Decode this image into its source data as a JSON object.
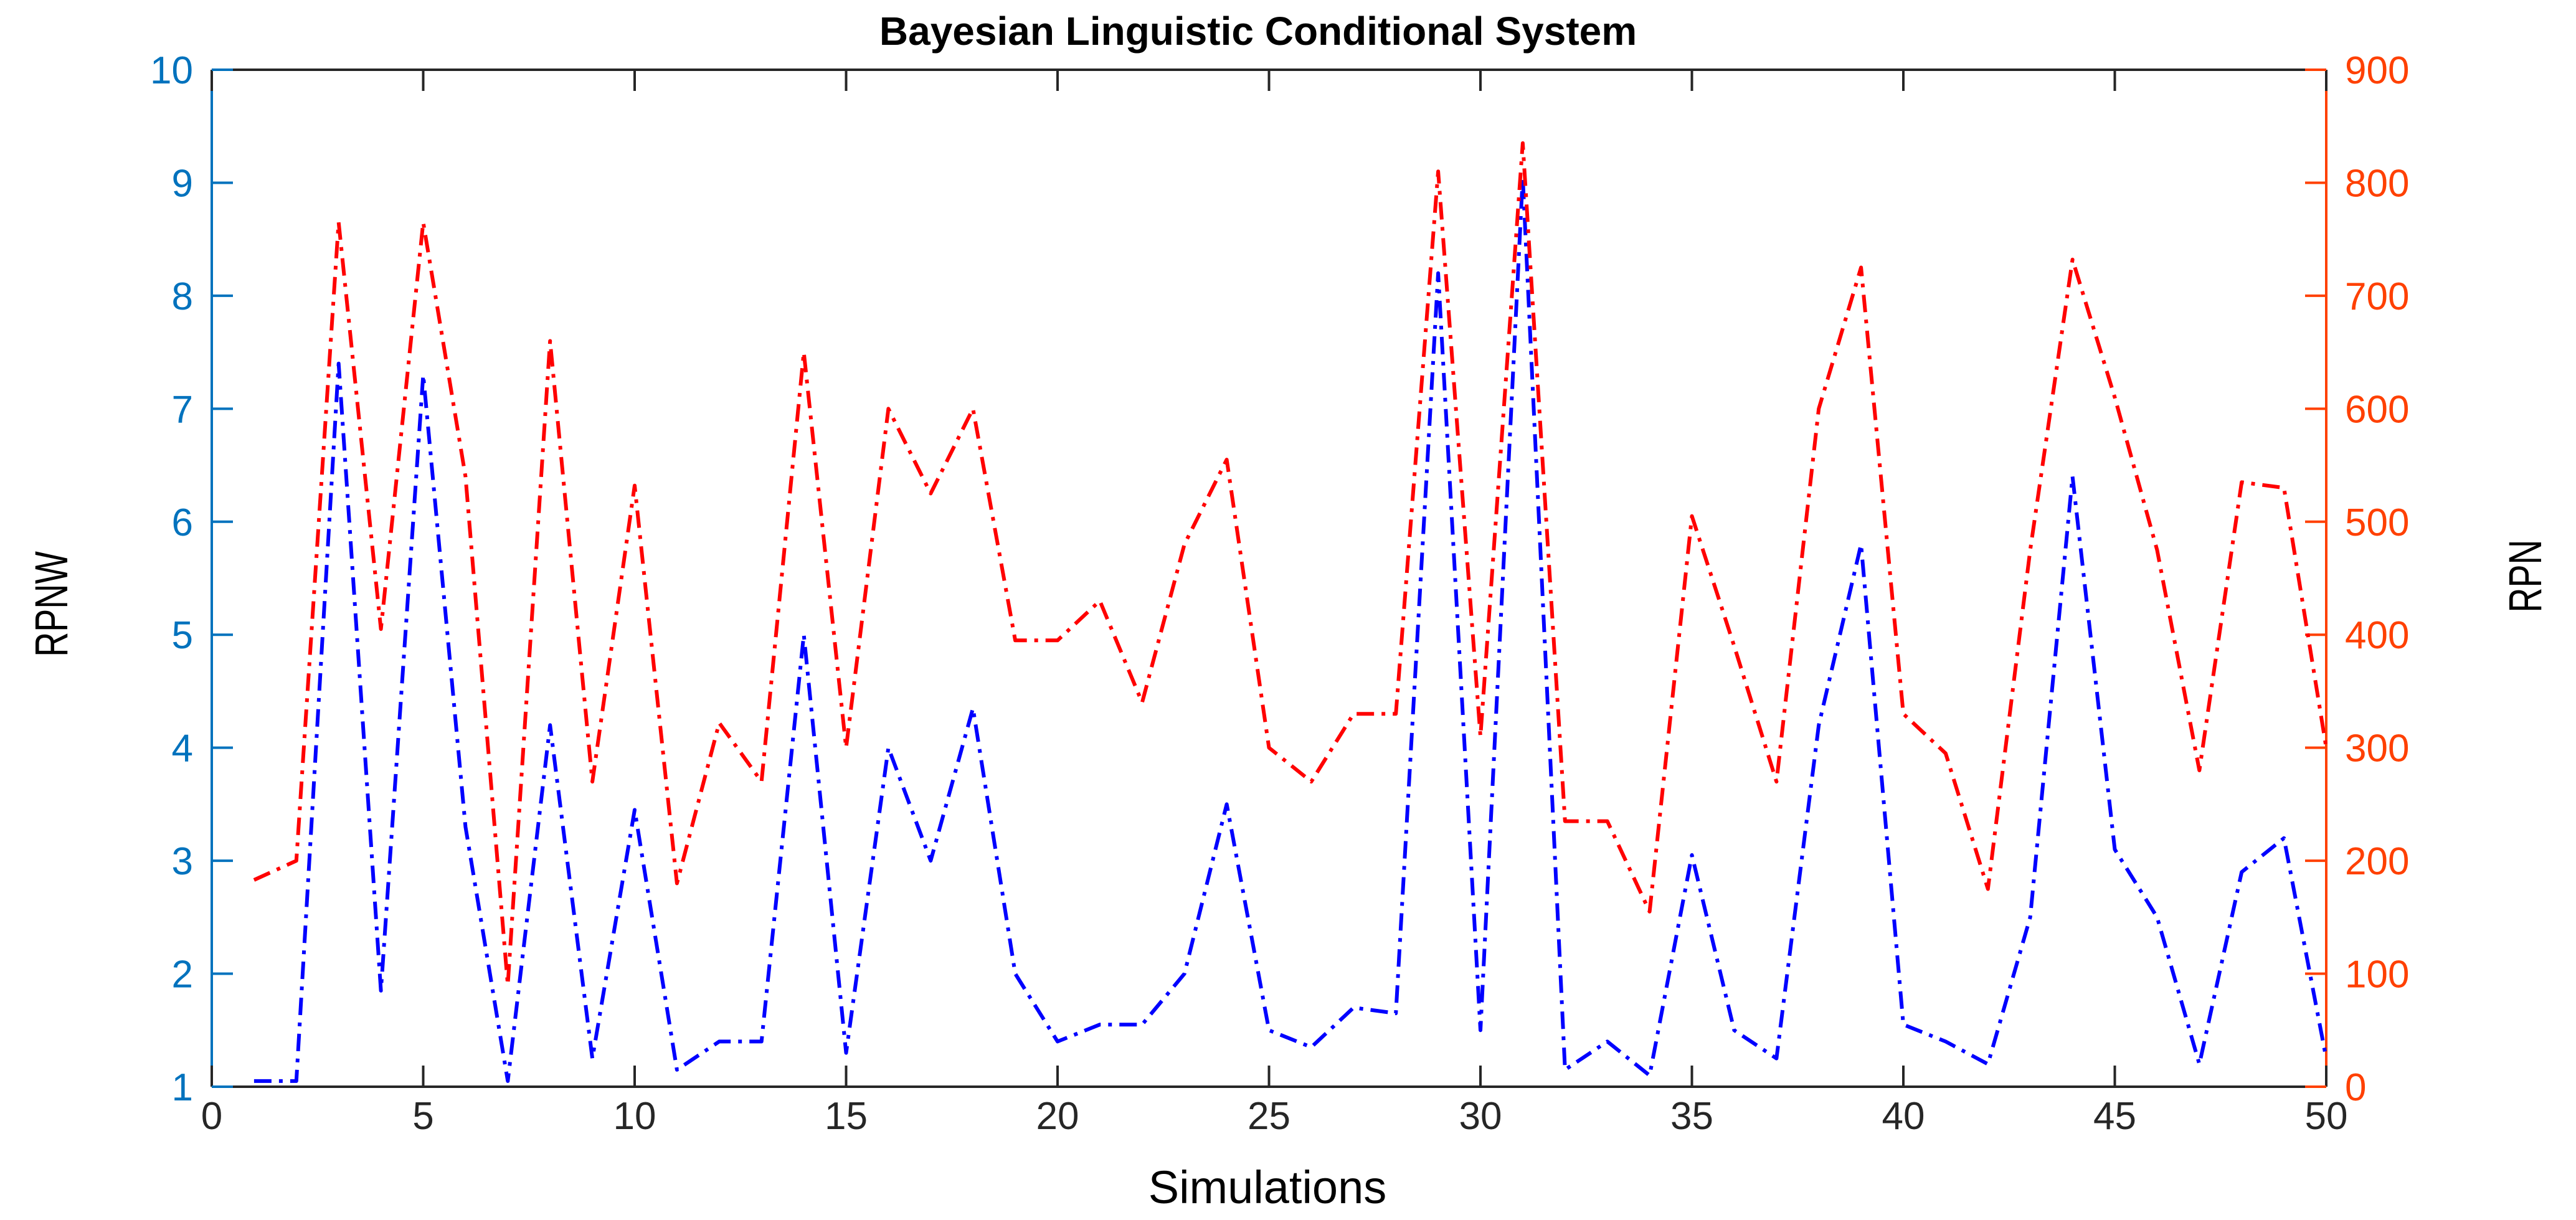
{
  "colors": {
    "left_axis": "#0072BD",
    "right_axis": "#FF4000",
    "rpnw_line": "#0000FF",
    "rpn_line": "#FF0000",
    "x_axis": "#262626"
  },
  "chart_data": {
    "type": "line",
    "title": "Bayesian Linguistic Conditional System",
    "xlabel": "Simulations",
    "ylabel_left": "RPNW",
    "ylabel_right": "RPN",
    "xlim": [
      0,
      50
    ],
    "ylim_left": [
      1,
      10
    ],
    "ylim_right": [
      0,
      900
    ],
    "xticks": [
      0,
      5,
      10,
      15,
      20,
      25,
      30,
      35,
      40,
      45,
      50
    ],
    "yticks_left": [
      1,
      2,
      3,
      4,
      5,
      6,
      7,
      8,
      9,
      10
    ],
    "yticks_right": [
      0,
      100,
      200,
      300,
      400,
      500,
      600,
      700,
      800,
      900
    ],
    "grid": false,
    "legend": false,
    "x": [
      1,
      2,
      3,
      4,
      5,
      6,
      7,
      8,
      9,
      10,
      11,
      12,
      13,
      14,
      15,
      16,
      17,
      18,
      19,
      20,
      21,
      22,
      23,
      24,
      25,
      26,
      27,
      28,
      29,
      30,
      31,
      32,
      33,
      34,
      35,
      36,
      37,
      38,
      39,
      40,
      41,
      42,
      43,
      44,
      45,
      46,
      47,
      48,
      49,
      50
    ],
    "series": [
      {
        "axis": "left",
        "style": "dash-dot",
        "values": [
          1.05,
          1.05,
          7.4,
          1.85,
          7.3,
          3.3,
          1.05,
          4.2,
          1.25,
          3.45,
          1.15,
          1.4,
          1.4,
          5.0,
          1.3,
          4.0,
          3.0,
          4.35,
          2.0,
          1.4,
          1.55,
          1.55,
          2.0,
          3.5,
          1.5,
          1.35,
          1.7,
          1.65,
          8.2,
          1.5,
          9.05,
          1.15,
          1.4,
          1.1,
          3.05,
          1.5,
          1.25,
          4.2,
          5.8,
          1.55,
          1.4,
          1.2,
          2.5,
          6.4,
          3.1,
          2.5,
          1.2,
          2.9,
          3.2,
          1.25
        ]
      },
      {
        "axis": "right",
        "style": "dash-dot",
        "values": [
          183,
          200,
          765,
          405,
          765,
          540,
          90,
          660,
          270,
          532,
          180,
          322,
          270,
          650,
          300,
          600,
          525,
          600,
          395,
          395,
          430,
          340,
          480,
          555,
          300,
          270,
          330,
          330,
          810,
          310,
          835,
          235,
          235,
          155,
          505,
          390,
          270,
          600,
          725,
          330,
          295,
          175,
          475,
          732,
          610,
          475,
          280,
          535,
          530,
          300
        ]
      }
    ]
  }
}
